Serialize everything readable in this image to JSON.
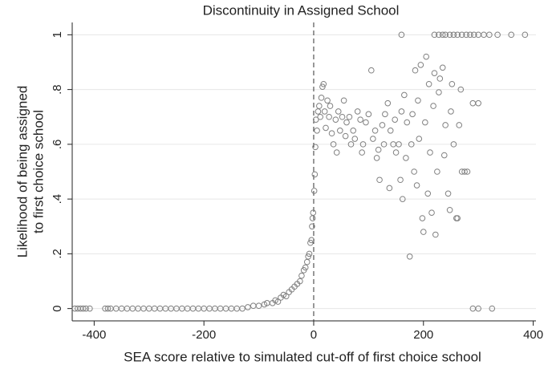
{
  "chart_data": {
    "type": "scatter",
    "title": "Discontinuity in Assigned School",
    "x_label": "SEA score relative to simulated cut-off of first choice school",
    "y_label": [
      "Likelihood of being assigned",
      "to first choice school"
    ],
    "xlim": [
      -440,
      405
    ],
    "ylim": [
      -0.045,
      1.045
    ],
    "xticks": [
      -400,
      -200,
      0,
      200,
      400
    ],
    "yticks": [
      0,
      {
        "value": 0.2,
        "label": ".2"
      },
      {
        "value": 0.4,
        "label": ".4"
      },
      {
        "value": 0.6,
        "label": ".6"
      },
      {
        "value": 0.8,
        "label": ".8"
      },
      1
    ],
    "grid": true,
    "reference_line_x": 0,
    "color": "#808080",
    "x": [
      -435,
      -430,
      -425,
      -420,
      -415,
      -408,
      -380,
      -375,
      -370,
      -360,
      -350,
      -340,
      -330,
      -320,
      -310,
      -300,
      -290,
      -280,
      -270,
      -260,
      -250,
      -240,
      -230,
      -220,
      -210,
      -200,
      -190,
      -180,
      -170,
      -160,
      -150,
      -140,
      -130,
      -120,
      -110,
      -100,
      -90,
      -85,
      -75,
      -70,
      -65,
      -60,
      -55,
      -50,
      -45,
      -40,
      -35,
      -30,
      -25,
      -22,
      -18,
      -15,
      -12,
      -10,
      -8,
      -6,
      -4,
      -3,
      -2,
      -1,
      1,
      2,
      3,
      4,
      6,
      8,
      10,
      12,
      14,
      16,
      18,
      20,
      22,
      25,
      28,
      30,
      33,
      36,
      40,
      42,
      45,
      48,
      52,
      55,
      58,
      60,
      65,
      68,
      72,
      75,
      80,
      85,
      88,
      90,
      95,
      100,
      105,
      108,
      112,
      115,
      118,
      120,
      125,
      128,
      130,
      135,
      138,
      140,
      145,
      148,
      150,
      155,
      158,
      160,
      162,
      165,
      168,
      170,
      175,
      178,
      180,
      183,
      185,
      188,
      190,
      192,
      195,
      198,
      200,
      203,
      205,
      208,
      210,
      212,
      215,
      218,
      220,
      222,
      225,
      228,
      230,
      235,
      238,
      240,
      245,
      248,
      250,
      252,
      255,
      260,
      262,
      265,
      268,
      270,
      275,
      280,
      290,
      300,
      160,
      220,
      228,
      235,
      240,
      248,
      255,
      262,
      270,
      278,
      285,
      292,
      300,
      310,
      320,
      335,
      360,
      385,
      290,
      300,
      325
    ],
    "values": [
      0,
      0,
      0,
      0,
      0,
      0,
      0,
      0,
      0,
      0,
      0,
      0,
      0,
      0,
      0,
      0,
      0,
      0,
      0,
      0,
      0,
      0,
      0,
      0,
      0,
      0,
      0,
      0,
      0,
      0,
      0,
      0,
      0,
      0.005,
      0.01,
      0.01,
      0.015,
      0.02,
      0.02,
      0.03,
      0.025,
      0.04,
      0.05,
      0.045,
      0.06,
      0.07,
      0.08,
      0.09,
      0.1,
      0.12,
      0.14,
      0.15,
      0.17,
      0.19,
      0.2,
      0.24,
      0.25,
      0.3,
      0.33,
      0.35,
      0.43,
      0.49,
      0.59,
      0.69,
      0.65,
      0.72,
      0.74,
      0.7,
      0.77,
      0.81,
      0.82,
      0.72,
      0.66,
      0.76,
      0.7,
      0.74,
      0.64,
      0.6,
      0.69,
      0.57,
      0.72,
      0.65,
      0.7,
      0.76,
      0.63,
      0.68,
      0.7,
      0.6,
      0.65,
      0.62,
      0.72,
      0.69,
      0.57,
      0.6,
      0.68,
      0.71,
      0.87,
      0.62,
      0.65,
      0.55,
      0.58,
      0.47,
      0.67,
      0.6,
      0.71,
      0.75,
      0.44,
      0.65,
      0.6,
      0.69,
      0.57,
      0.6,
      0.47,
      0.72,
      0.4,
      0.78,
      0.55,
      0.68,
      0.19,
      0.6,
      0.71,
      0.5,
      0.87,
      0.45,
      0.76,
      0.62,
      0.89,
      0.33,
      0.28,
      0.68,
      0.92,
      0.42,
      0.82,
      0.57,
      0.35,
      0.74,
      0.86,
      0.27,
      0.5,
      0.79,
      0.84,
      0.88,
      0.56,
      0.67,
      0.42,
      0.36,
      0.72,
      0.82,
      0.6,
      0.33,
      0.33,
      0.67,
      0.8,
      0.5,
      0.5,
      0.5,
      0.75,
      0.75,
      1,
      1,
      1,
      1,
      1,
      1,
      1,
      1,
      1,
      1,
      1,
      1,
      1,
      1,
      1,
      1,
      1,
      1,
      0,
      0,
      0
    ]
  }
}
